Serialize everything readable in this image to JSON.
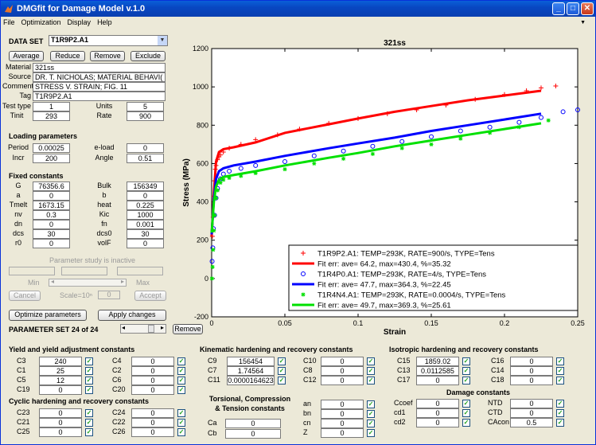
{
  "window": {
    "title": "DMGfit for Damage Model v.1.0"
  },
  "menu": [
    "File",
    "Optimization",
    "Display",
    "Help"
  ],
  "dataset": {
    "label": "DATA SET",
    "selected": "T1R9P2.A1",
    "buttons": [
      "Average",
      "Reduce",
      "Remove",
      "Exclude"
    ],
    "material_label": "Material",
    "material": "321ss",
    "source_label": "Source",
    "source": "DR. T. NICHOLAS; MATERIAL BEHAVI(",
    "comment_label": "Comment",
    "comment": "STRESS V. STRAIN; FIG. 11",
    "tag_label": "Tag",
    "tag": "T1R9P2.A1",
    "testtype_label": "Test type",
    "testtype": "1",
    "units_label": "Units",
    "units": "5",
    "tinit_label": "Tinit",
    "tinit": "293",
    "rate_label": "Rate",
    "rate": "900"
  },
  "loading": {
    "title": "Loading parameters",
    "period_label": "Period",
    "period": "0.00025",
    "eload_label": "e-load",
    "eload": "0",
    "incr_label": "Incr",
    "incr": "200",
    "angle_label": "Angle",
    "angle": "0.51"
  },
  "fixed": {
    "title": "Fixed constants",
    "rows": [
      {
        "l1": "G",
        "v1": "76356.6",
        "l2": "Bulk",
        "v2": "156349"
      },
      {
        "l1": "a",
        "v1": "0",
        "l2": "b",
        "v2": "0"
      },
      {
        "l1": "Tmelt",
        "v1": "1673.15",
        "l2": "heat",
        "v2": "0.225"
      },
      {
        "l1": "nv",
        "v1": "0.3",
        "l2": "Kic",
        "v2": "1000"
      },
      {
        "l1": "dn",
        "v1": "0",
        "l2": "fn",
        "v2": "0.001"
      },
      {
        "l1": "dcs",
        "v1": "30",
        "l2": "dcs0",
        "v2": "30"
      },
      {
        "l1": "r0",
        "v1": "0",
        "l2": "volF",
        "v2": "0"
      }
    ]
  },
  "study": {
    "status": "Parameter study is inactive",
    "min": "Min",
    "max": "Max",
    "cancel": "Cancel",
    "scale": "Scale=10ⁿ",
    "scale_value": "0",
    "accept": "Accept"
  },
  "optimize": {
    "optimize_label": "Optimize parameters",
    "apply_label": "Apply changes",
    "paramset": "PARAMETER SET 24 of 24",
    "remove": "Remove"
  },
  "chart_data": {
    "type": "scatter",
    "title": "321ss",
    "xlabel": "Strain",
    "ylabel": "Stress (MPa)",
    "xlim": [
      0,
      0.25
    ],
    "ylim": [
      -200,
      1200
    ],
    "xticks": [
      "0",
      "0.05",
      "0.1",
      "0.15",
      "0.2",
      "0.25"
    ],
    "yticks": [
      "-200",
      "0",
      "200",
      "400",
      "600",
      "800",
      "1000",
      "1200"
    ],
    "legend_position": "bottom-right",
    "series": [
      {
        "name": "T1R9P2.A1: TEMP=293K, RATE=900/s, TYPE=Tens",
        "marker": "+",
        "color": "#ff0000",
        "x": [
          0.0005,
          0.001,
          0.0015,
          0.002,
          0.0025,
          0.003,
          0.004,
          0.005,
          0.006,
          0.008,
          0.012,
          0.02,
          0.03,
          0.045,
          0.06,
          0.08,
          0.1,
          0.12,
          0.14,
          0.16,
          0.18,
          0.2,
          0.215,
          0.225,
          0.235
        ],
        "y": [
          220,
          320,
          430,
          510,
          570,
          590,
          620,
          635,
          645,
          660,
          680,
          700,
          725,
          750,
          780,
          810,
          835,
          860,
          880,
          905,
          935,
          960,
          980,
          995,
          1005
        ]
      },
      {
        "name": "Fit err: ave= 64.2, max=430.4, %=35.32",
        "line": true,
        "color": "#ff0000",
        "x": [
          0,
          0.0015,
          0.003,
          0.005,
          0.008,
          0.015,
          0.03,
          0.05,
          0.08,
          0.1,
          0.125,
          0.15,
          0.175,
          0.2,
          0.225
        ],
        "y": [
          220,
          450,
          610,
          660,
          675,
          685,
          710,
          760,
          805,
          835,
          870,
          900,
          930,
          955,
          980
        ]
      },
      {
        "name": "T1R4P0.A1: TEMP=293K, RATE=4/s, TYPE=Tens",
        "marker": "o",
        "color": "#0000ff",
        "x": [
          0.0003,
          0.0008,
          0.0012,
          0.002,
          0.003,
          0.004,
          0.006,
          0.008,
          0.012,
          0.02,
          0.03,
          0.05,
          0.07,
          0.09,
          0.11,
          0.13,
          0.15,
          0.17,
          0.19,
          0.21,
          0.225,
          0.24,
          0.25
        ],
        "y": [
          90,
          160,
          260,
          330,
          420,
          470,
          520,
          545,
          560,
          575,
          590,
          610,
          640,
          665,
          690,
          715,
          740,
          770,
          790,
          815,
          840,
          870,
          880
        ]
      },
      {
        "name": "Fit err: ave= 47.7, max=364.3, %=22.45",
        "line": true,
        "color": "#0000ff",
        "x": [
          0,
          0.0015,
          0.003,
          0.005,
          0.008,
          0.015,
          0.03,
          0.05,
          0.08,
          0.1,
          0.125,
          0.15,
          0.175,
          0.2,
          0.225
        ],
        "y": [
          230,
          420,
          520,
          560,
          575,
          590,
          610,
          640,
          680,
          705,
          735,
          770,
          800,
          830,
          860
        ]
      },
      {
        "name": "T1R4N4.A1: TEMP=293K, RATE=0.0004/s, TYPE=Tens",
        "marker": "*",
        "color": "#00e000",
        "x": [
          0.0002,
          0.0006,
          0.001,
          0.0015,
          0.002,
          0.003,
          0.004,
          0.006,
          0.008,
          0.012,
          0.02,
          0.03,
          0.05,
          0.07,
          0.09,
          0.11,
          0.13,
          0.15,
          0.17,
          0.19,
          0.21,
          0.23
        ],
        "y": [
          0,
          60,
          150,
          250,
          330,
          420,
          460,
          500,
          515,
          525,
          535,
          550,
          570,
          600,
          625,
          650,
          680,
          700,
          730,
          760,
          790,
          825
        ]
      },
      {
        "name": "Fit err: ave= 49.7, max=369.3, %=25.61",
        "line": true,
        "color": "#00e000",
        "x": [
          0,
          0.0015,
          0.003,
          0.005,
          0.008,
          0.015,
          0.03,
          0.05,
          0.08,
          0.1,
          0.125,
          0.15,
          0.175,
          0.2,
          0.225
        ],
        "y": [
          240,
          400,
          480,
          515,
          530,
          540,
          560,
          590,
          630,
          655,
          690,
          720,
          750,
          780,
          810
        ]
      }
    ]
  },
  "groups": {
    "yield": {
      "title": "Yield and yield adjustment constants",
      "rows": [
        {
          "l1": "C3",
          "v1": "240",
          "l2": "C4",
          "v2": "0"
        },
        {
          "l1": "C1",
          "v1": "25",
          "l2": "C2",
          "v2": "0"
        },
        {
          "l1": "C5",
          "v1": "12",
          "l2": "C6",
          "v2": "0"
        },
        {
          "l1": "C19",
          "v1": "0",
          "l2": "C20",
          "v2": "0"
        }
      ]
    },
    "cyclic": {
      "title": "Cyclic hardening and recovery constants",
      "rows": [
        {
          "l1": "C23",
          "v1": "0",
          "l2": "C24",
          "v2": "0"
        },
        {
          "l1": "C21",
          "v1": "0",
          "l2": "C22",
          "v2": "0"
        },
        {
          "l1": "C25",
          "v1": "0",
          "l2": "C26",
          "v2": "0"
        }
      ]
    },
    "kinematic": {
      "title": "Kinematic hardening and recovery constants",
      "rows": [
        {
          "l1": "C9",
          "v1": "156454",
          "l2": "C10",
          "v2": "0"
        },
        {
          "l1": "C7",
          "v1": "1.74564",
          "l2": "C8",
          "v2": "0"
        },
        {
          "l1": "C11",
          "v1": "0.0000164623",
          "l2": "C12",
          "v2": "0"
        }
      ]
    },
    "torsional": {
      "title1": "Torsional, Compression",
      "title2": "& Tension constants",
      "rows": [
        {
          "l1": "Ca",
          "v1": "0",
          "l2": "an",
          "v2": "0"
        },
        {
          "l1": "Cb",
          "v1": "0",
          "l2": "bn",
          "v2": "0"
        }
      ],
      "extra": [
        {
          "l": "cn",
          "v": "0"
        },
        {
          "l": "Z",
          "v": "0"
        }
      ]
    },
    "isotropic": {
      "title": "Isotropic hardening and recovery constants",
      "rows": [
        {
          "l1": "C15",
          "v1": "1859.02",
          "l2": "C16",
          "v2": "0"
        },
        {
          "l1": "C13",
          "v1": "0.0112585",
          "l2": "C14",
          "v2": "0"
        },
        {
          "l1": "C17",
          "v1": "0",
          "l2": "C18",
          "v2": "0"
        }
      ]
    },
    "damage": {
      "title": "Damage constants",
      "rows": [
        {
          "l1": "Ccoef",
          "v1": "0",
          "l2": "NTD",
          "v2": "0"
        },
        {
          "l1": "cd1",
          "v1": "0",
          "l2": "CTD",
          "v2": "0"
        },
        {
          "l1": "cd2",
          "v1": "0",
          "l2": "CAcon",
          "v2": "0.5"
        }
      ]
    }
  }
}
